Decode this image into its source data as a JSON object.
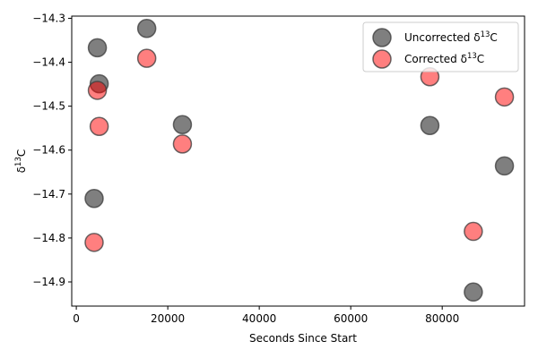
{
  "chart_data": {
    "type": "scatter",
    "xlabel": "Seconds Since Start",
    "ylabel_base": "δ",
    "ylabel_sup": "13",
    "ylabel_tail": "C",
    "xlim": [
      -1000,
      98000
    ],
    "ylim": [
      -14.955,
      -14.295
    ],
    "xticks": [
      0,
      20000,
      40000,
      60000,
      80000
    ],
    "xtick_labels": [
      "0",
      "20000",
      "40000",
      "60000",
      "80000"
    ],
    "yticks": [
      -14.9,
      -14.8,
      -14.7,
      -14.6,
      -14.5,
      -14.4,
      -14.3
    ],
    "ytick_labels": [
      "−14.9",
      "−14.8",
      "−14.7",
      "−14.6",
      "−14.5",
      "−14.4",
      "−14.3"
    ],
    "grid": false,
    "legend_position": "top-right",
    "series": [
      {
        "name_base": "Uncorrected δ",
        "name_sup": "13",
        "name_tail": "C",
        "color": "#000000",
        "opacity": 0.5,
        "x": [
          3900,
          4600,
          5000,
          15400,
          23200,
          77300,
          86800,
          93600
        ],
        "y": [
          -14.71,
          -14.367,
          -14.449,
          -14.323,
          -14.542,
          -14.544,
          -14.923,
          -14.636
        ]
      },
      {
        "name_base": "Corrected δ",
        "name_sup": "13",
        "name_tail": "C",
        "color": "#ff0000",
        "opacity": 0.5,
        "x": [
          3900,
          4600,
          5000,
          15400,
          23200,
          77300,
          86800,
          93600
        ],
        "y": [
          -14.81,
          -14.464,
          -14.546,
          -14.391,
          -14.586,
          -14.433,
          -14.785,
          -14.479
        ]
      }
    ]
  }
}
